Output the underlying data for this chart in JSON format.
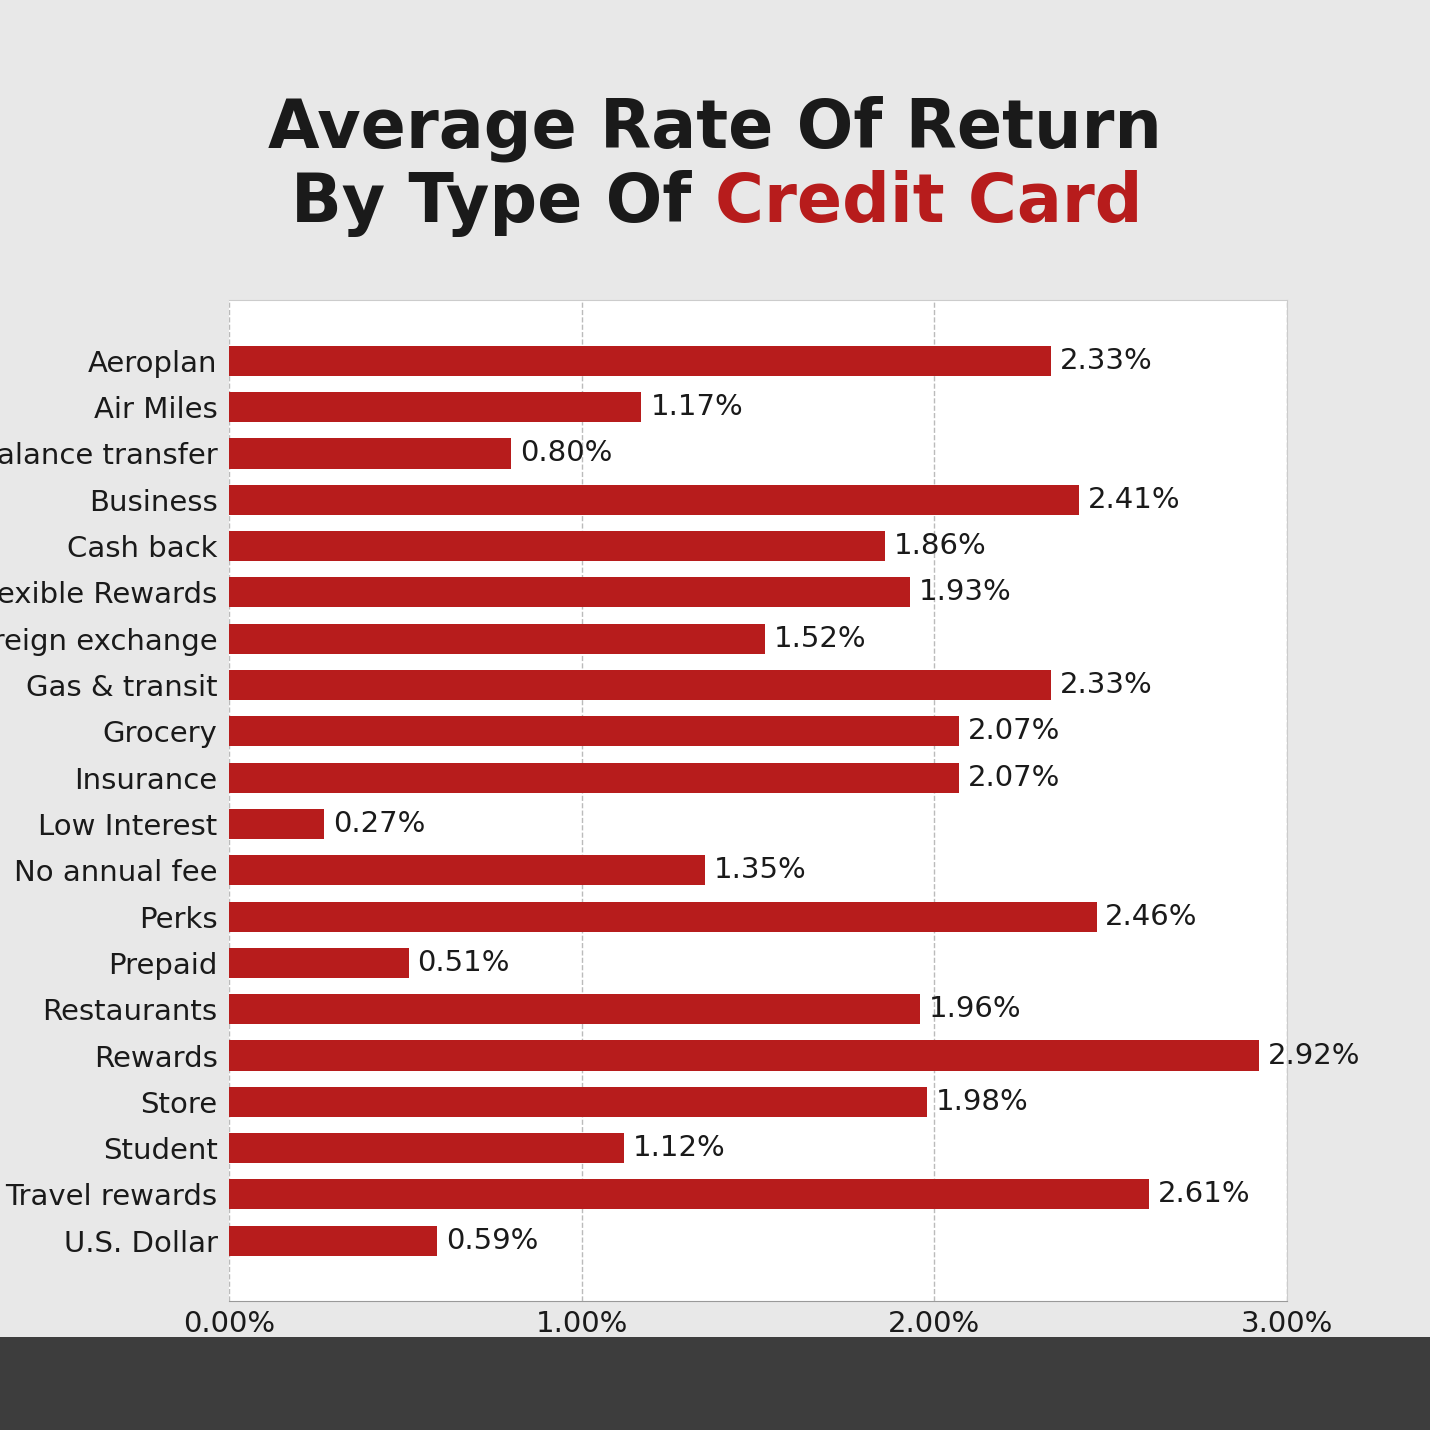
{
  "categories": [
    "Aeroplan",
    "Air Miles",
    "Balance transfer",
    "Business",
    "Cash back",
    "Flexible Rewards",
    "Foreign exchange",
    "Gas & transit",
    "Grocery",
    "Insurance",
    "Low Interest",
    "No annual fee",
    "Perks",
    "Prepaid",
    "Restaurants",
    "Rewards",
    "Store",
    "Student",
    "Travel rewards",
    "U.S. Dollar"
  ],
  "values": [
    2.33,
    1.17,
    0.8,
    2.41,
    1.86,
    1.93,
    1.52,
    2.33,
    2.07,
    2.07,
    0.27,
    1.35,
    2.46,
    0.51,
    1.96,
    2.92,
    1.98,
    1.12,
    2.61,
    0.59
  ],
  "bar_color": "#B71C1C",
  "title_line1": "Average Rate Of Return",
  "title_line2_black": "By Type Of ",
  "title_line2_red": "Credit Card",
  "title_fontsize": 48,
  "label_fontsize": 21,
  "value_fontsize": 21,
  "tick_fontsize": 21,
  "bg_color_top": "#E8E8E8",
  "bg_color_chart": "#FFFFFF",
  "bg_color_bottom": "#3D3D3D",
  "title_color": "#1A1A1A",
  "red_color": "#B71C1C",
  "xlim": [
    0,
    3.0
  ],
  "xticks": [
    0.0,
    1.0,
    2.0,
    3.0
  ],
  "xtick_labels": [
    "0.00%",
    "1.00%",
    "2.00%",
    "3.00%"
  ]
}
